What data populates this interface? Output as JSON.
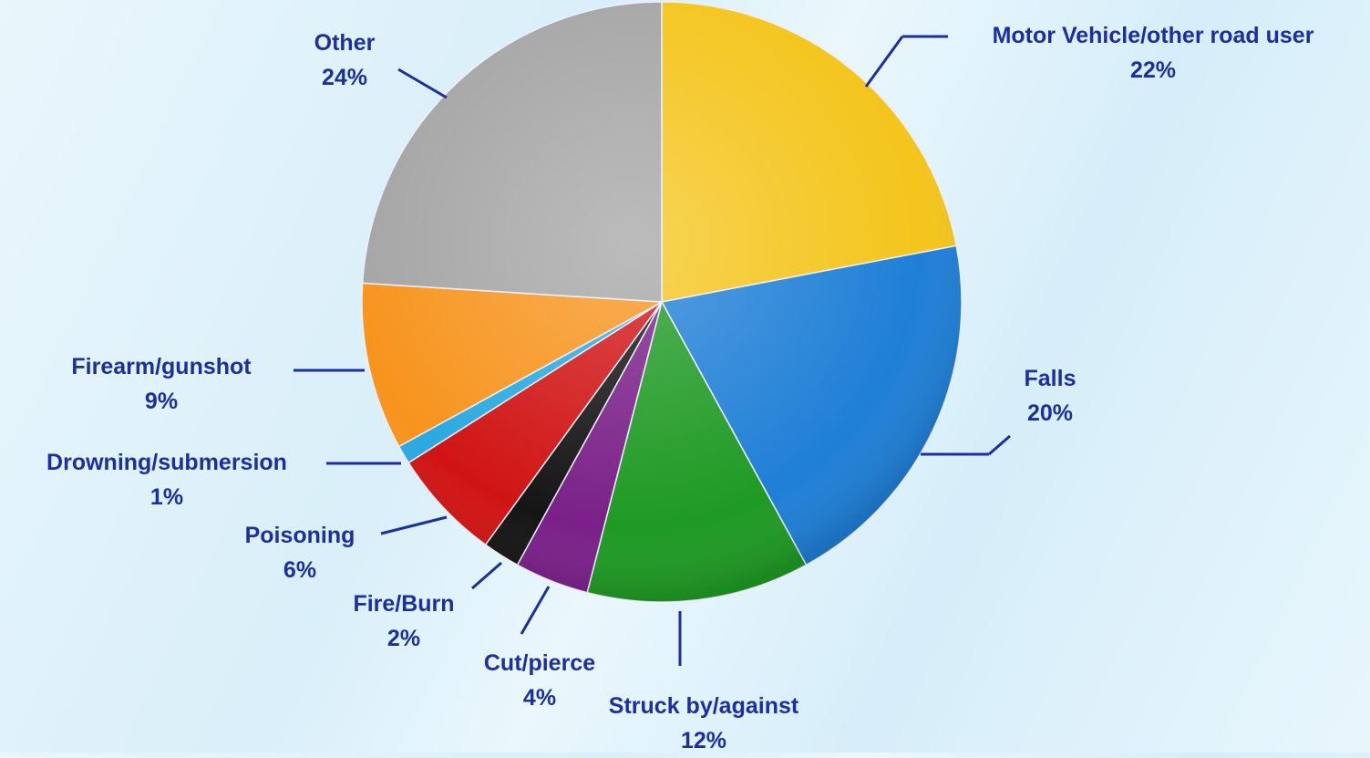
{
  "chart_data": {
    "type": "pie",
    "categories": [
      "Motor Vehicle/other road user",
      "Falls",
      "Struck by/against",
      "Cut/pierce",
      "Fire/Burn",
      "Poisoning",
      "Drowning/submersion",
      "Firearm/gunshot",
      "Other"
    ],
    "values": [
      22,
      20,
      12,
      4,
      2,
      6,
      1,
      9,
      24
    ],
    "value_labels": [
      "22%",
      "20%",
      "12%",
      "4%",
      "2%",
      "6%",
      "1%",
      "9%",
      "24%"
    ],
    "colors": [
      "#f4c51c",
      "#1f7fd6",
      "#1f9a24",
      "#7a2088",
      "#151515",
      "#d01414",
      "#2aa9e0",
      "#f7941d",
      "#a5a5a5"
    ]
  }
}
